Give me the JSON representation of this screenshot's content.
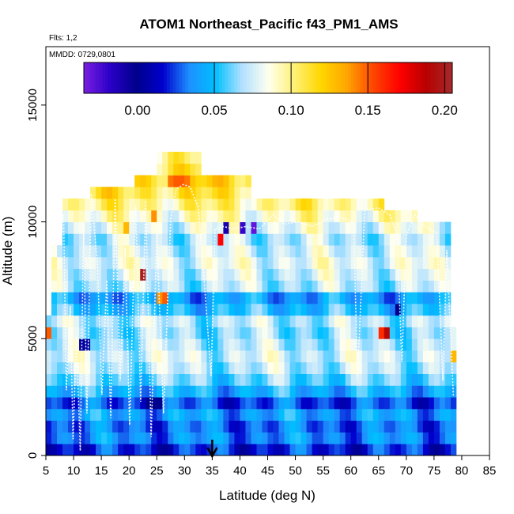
{
  "chart_data": {
    "type": "heatmap",
    "title": "ATOM1 Northeast_Pacific f43_PM1_AMS",
    "flights_label": "Flts: 1,2",
    "dates_label": "MMDD: 0729,0801",
    "xlabel": "Latitude (deg N)",
    "ylabel": "Altitude (m)",
    "xlim": [
      5,
      85
    ],
    "ylim": [
      0,
      17500
    ],
    "x_ticks": [
      5,
      10,
      15,
      20,
      25,
      30,
      35,
      40,
      45,
      50,
      55,
      60,
      65,
      70,
      75,
      80,
      85
    ],
    "y_ticks": [
      0,
      5000,
      10000,
      15000
    ],
    "y_tick_labels": [
      "0",
      "5000",
      "10000",
      "15000"
    ],
    "colorbar": {
      "min": -0.035,
      "max": 0.205,
      "ticks": [
        0.0,
        0.05,
        0.1,
        0.15,
        0.2
      ],
      "tick_labels": [
        "0.00",
        "0.05",
        "0.10",
        "0.15",
        "0.20"
      ],
      "colors": [
        "#7b1fe0",
        "#2a00c8",
        "#00008b",
        "#0000cd",
        "#1e90ff",
        "#00bfff",
        "#b0e0ff",
        "#fffff0",
        "#fff176",
        "#ffd700",
        "#ffa500",
        "#ff4500",
        "#ff0000",
        "#b80000",
        "#a52a2a"
      ]
    },
    "cell_size": {
      "lat": 1.0,
      "alt": 500
    },
    "latitude_extent": [
      5,
      79
    ],
    "altitude_bands": [
      {
        "alt": 250,
        "value": 0.02
      },
      {
        "alt": 750,
        "value": 0.035
      },
      {
        "alt": 1250,
        "value": 0.03
      },
      {
        "alt": 1750,
        "value": 0.04
      },
      {
        "alt": 2250,
        "value": 0.025
      },
      {
        "alt": 2750,
        "value": 0.045
      },
      {
        "alt": 3250,
        "value": 0.06
      },
      {
        "alt": 3750,
        "value": 0.07
      },
      {
        "alt": 4250,
        "value": 0.075
      },
      {
        "alt": 4750,
        "value": 0.07
      },
      {
        "alt": 5250,
        "value": 0.065
      },
      {
        "alt": 5750,
        "value": 0.07
      },
      {
        "alt": 6250,
        "value": 0.05
      },
      {
        "alt": 6750,
        "value": 0.04
      },
      {
        "alt": 7250,
        "value": 0.07
      },
      {
        "alt": 7750,
        "value": 0.075
      },
      {
        "alt": 8250,
        "value": 0.08
      },
      {
        "alt": 8750,
        "value": 0.075
      },
      {
        "alt": 9250,
        "value": 0.07
      },
      {
        "alt": 9750,
        "value": 0.08
      },
      {
        "alt": 10250,
        "value": 0.09
      },
      {
        "alt": 10750,
        "value": 0.1
      },
      {
        "alt": 11250,
        "value": 0.11
      },
      {
        "alt": 11750,
        "value": 0.12
      },
      {
        "alt": 12250,
        "value": 0.11
      },
      {
        "alt": 12750,
        "value": 0.1
      }
    ],
    "anomalies": [
      {
        "lat": 27,
        "alt": 11750,
        "value": 0.145
      },
      {
        "lat": 28,
        "alt": 11750,
        "value": 0.15
      },
      {
        "lat": 29,
        "alt": 11750,
        "value": 0.15
      },
      {
        "lat": 30,
        "alt": 11750,
        "value": 0.145
      },
      {
        "lat": 24,
        "alt": 10250,
        "value": 0.14
      },
      {
        "lat": 19,
        "alt": 9750,
        "value": 0.13
      },
      {
        "lat": 37,
        "alt": 9750,
        "value": -0.01
      },
      {
        "lat": 40,
        "alt": 9750,
        "value": -0.02
      },
      {
        "lat": 42,
        "alt": 9750,
        "value": -0.03
      },
      {
        "lat": 36,
        "alt": 9250,
        "value": 0.17
      },
      {
        "lat": 22,
        "alt": 7750,
        "value": 0.2
      },
      {
        "lat": 26,
        "alt": 6750,
        "value": 0.15
      },
      {
        "lat": 25,
        "alt": 6750,
        "value": 0.14
      },
      {
        "lat": 66,
        "alt": 5250,
        "value": 0.19
      },
      {
        "lat": 65,
        "alt": 5250,
        "value": 0.16
      },
      {
        "lat": 68,
        "alt": 6250,
        "value": 0.0
      },
      {
        "lat": 23,
        "alt": 2250,
        "value": 0.0
      },
      {
        "lat": 24,
        "alt": 2250,
        "value": 0.0
      },
      {
        "lat": 25,
        "alt": 2250,
        "value": 0.0
      },
      {
        "lat": 11,
        "alt": 4750,
        "value": 0.005
      },
      {
        "lat": 12,
        "alt": 4750,
        "value": 0.005
      },
      {
        "lat": 5,
        "alt": 5250,
        "value": 0.15
      },
      {
        "lat": 78,
        "alt": 4250,
        "value": 0.13
      }
    ],
    "flight_track": [
      [
        8.2,
        10300
      ],
      [
        8.7,
        2800
      ],
      [
        9.4,
        6400
      ],
      [
        9.9,
        700
      ],
      [
        10.5,
        5100
      ],
      [
        11.2,
        200
      ],
      [
        11.8,
        9900
      ],
      [
        12.4,
        1800
      ],
      [
        13.2,
        11200
      ],
      [
        14.3,
        8200
      ],
      [
        15.1,
        2600
      ],
      [
        16.0,
        7500
      ],
      [
        16.7,
        1600
      ],
      [
        17.5,
        11000
      ],
      [
        18.4,
        3200
      ],
      [
        19.3,
        8900
      ],
      [
        20.1,
        1300
      ],
      [
        21.2,
        10700
      ],
      [
        22.1,
        2300
      ],
      [
        23.0,
        10900
      ],
      [
        24.0,
        800
      ],
      [
        25.0,
        9500
      ],
      [
        26.2,
        1800
      ],
      [
        27.5,
        10100
      ],
      [
        28.5,
        11400
      ],
      [
        29.8,
        11600
      ],
      [
        31.0,
        11500
      ],
      [
        32.5,
        10600
      ],
      [
        33.7,
        7000
      ],
      [
        34.8,
        3400
      ],
      [
        35.5,
        9700
      ],
      [
        37.0,
        9800
      ],
      [
        39.0,
        9700
      ],
      [
        41.0,
        9800
      ],
      [
        43.5,
        9700
      ],
      [
        46.0,
        10300
      ],
      [
        48.0,
        9900
      ],
      [
        50.5,
        10000
      ],
      [
        53.0,
        9800
      ],
      [
        55.5,
        10100
      ],
      [
        58.0,
        10200
      ],
      [
        60.5,
        10000
      ],
      [
        61.2,
        3300
      ],
      [
        62.5,
        10500
      ],
      [
        65.0,
        10600
      ],
      [
        67.0,
        10300
      ],
      [
        68.3,
        9500
      ],
      [
        69.2,
        4000
      ],
      [
        70.0,
        9400
      ],
      [
        71.5,
        10300
      ],
      [
        73.5,
        9800
      ],
      [
        75.5,
        9500
      ],
      [
        76.6,
        3200
      ],
      [
        77.3,
        8800
      ],
      [
        78.5,
        2500
      ]
    ],
    "marker": {
      "lat": 35,
      "label": "arrow"
    }
  }
}
